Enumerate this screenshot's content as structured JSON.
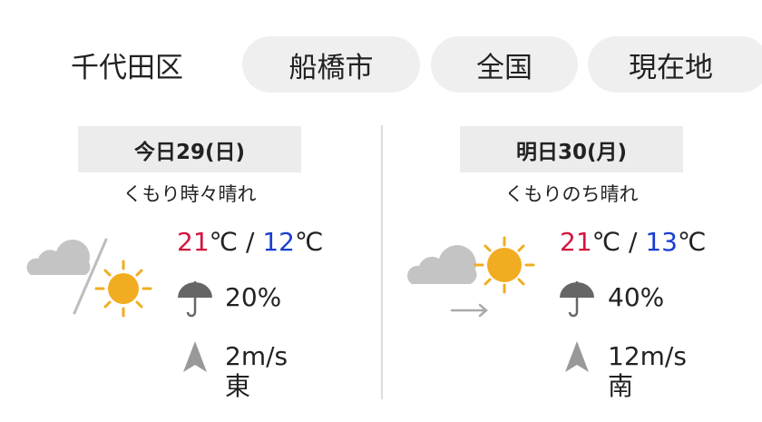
{
  "tabs": [
    {
      "label": "千代田区",
      "selected": true
    },
    {
      "label": "船橋市",
      "selected": false
    },
    {
      "label": "全国",
      "selected": false
    },
    {
      "label": "現在地",
      "selected": false
    }
  ],
  "days": [
    {
      "header": "今日29(日)",
      "condition": "くもり時々晴れ",
      "icon": "cloud-sometimes-sun",
      "high": "21",
      "low": "12",
      "unit": "℃",
      "separator": " / ",
      "precip": "20%",
      "wind_speed": "2m/s",
      "wind_dir": "東"
    },
    {
      "header": "明日30(月)",
      "condition": "くもりのち晴れ",
      "icon": "cloud-then-sun",
      "high": "21",
      "low": "13",
      "unit": "℃",
      "separator": " / ",
      "precip": "40%",
      "wind_speed": "12m/s",
      "wind_dir": "南"
    }
  ],
  "colors": {
    "high": "#d4143f",
    "low": "#1a3fd0",
    "sun": "#f2ac22",
    "cloud": "#c4c4c4",
    "pill": "#efefef"
  }
}
